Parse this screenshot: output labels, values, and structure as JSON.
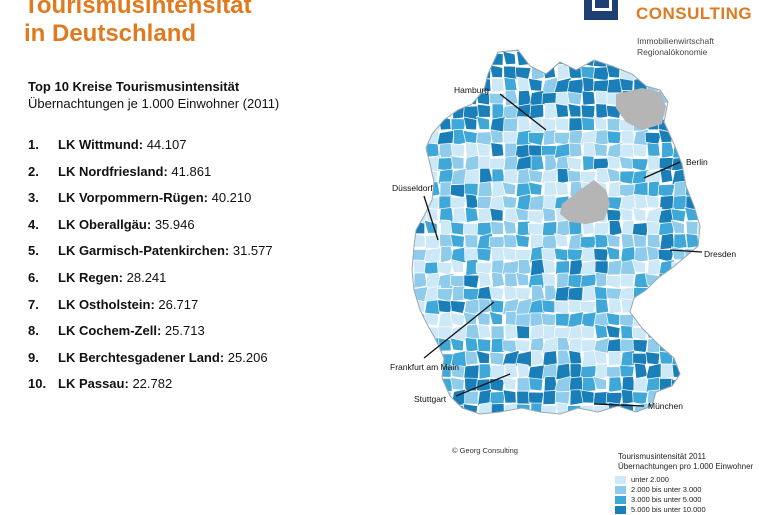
{
  "header": {
    "title_line1": "Tourismusintensität",
    "title_line2": "in Deutschland",
    "brand": "CONSULTING",
    "tagline1": "Immobilienwirtschaft",
    "tagline2": "Regionalökonomie"
  },
  "ranking": {
    "heading": "Top 10 Kreise Tourismusintensität",
    "subheading": "Übernachtungen je 1.000 Einwohner (2011)",
    "items": [
      {
        "rank": "1.",
        "name": "LK Wittmund:",
        "value": "44.107"
      },
      {
        "rank": "2.",
        "name": "LK Nordfriesland:",
        "value": "41.861"
      },
      {
        "rank": "3.",
        "name": "LK Vorpommern-Rügen:",
        "value": "40.210"
      },
      {
        "rank": "4.",
        "name": "LK Oberallgäu:",
        "value": "35.946"
      },
      {
        "rank": "5.",
        "name": "LK Garmisch-Patenkirchen:",
        "value": "31.577"
      },
      {
        "rank": "6.",
        "name": "LK Regen:",
        "value": "28.241"
      },
      {
        "rank": "7.",
        "name": "LK Ostholstein:",
        "value": "26.717"
      },
      {
        "rank": "8.",
        "name": "LK Cochem-Zell:",
        "value": "25.713"
      },
      {
        "rank": "9.",
        "name": "LK Berchtesgadener Land:",
        "value": " 25.206"
      },
      {
        "rank": "10.",
        "name": "LK Passau:",
        "value": "22.782"
      }
    ]
  },
  "map": {
    "cities": [
      "Hamburg",
      "Berlin",
      "Düsseldorf",
      "Dresden",
      "Frankfurt am Main",
      "Stuttgart",
      "München"
    ],
    "copyright": "© Georg Consulting",
    "legend": {
      "title1": "Tourismusintensität 2011",
      "title2": "Übernachtungen pro 1.000 Einwohner",
      "classes": [
        {
          "label": "unter 2.000",
          "color": "#cde8f6"
        },
        {
          "label": "2.000 bis unter 3.000",
          "color": "#8fcbeb"
        },
        {
          "label": "3.000 bis unter 5.000",
          "color": "#3fa8d8"
        },
        {
          "label": "5.000 bis unter 10.000",
          "color": "#1a7fb8"
        }
      ]
    },
    "nodata_color": "#b5b5b5"
  }
}
